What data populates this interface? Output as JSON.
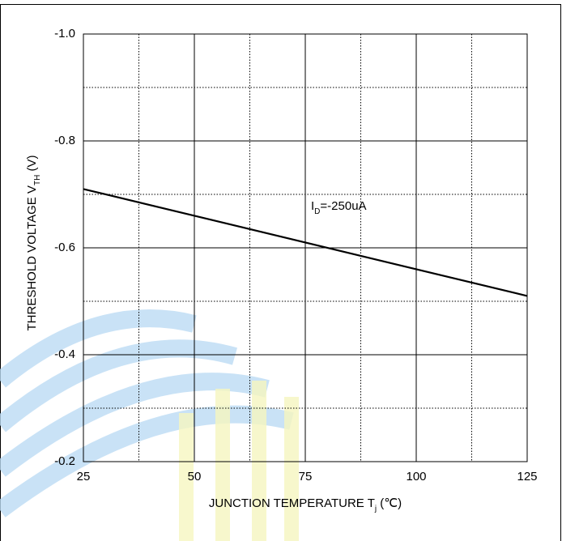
{
  "chart_data": {
    "type": "line",
    "y_label": [
      "THRESHOLD VOLTAGE V",
      "TH",
      " (V)"
    ],
    "x_label": [
      "JUNCTION TEMPERATURE T",
      "j",
      " (℃)"
    ],
    "annotation": [
      "I",
      "D",
      "=-250uA"
    ],
    "x": [
      25,
      125
    ],
    "series": [
      {
        "color": "#000000",
        "values": [
          -0.71,
          -0.51
        ]
      }
    ],
    "xlim": [
      25,
      125
    ],
    "xticks": [
      25,
      50,
      75,
      100,
      125
    ],
    "xminor": [
      37.5,
      62.5,
      87.5,
      112.5
    ],
    "ylim": [
      -0.2,
      -1.0
    ],
    "yticks": [
      {
        "value": -1.0,
        "label": "-1.0"
      },
      -0.8,
      -0.6,
      -0.4,
      -0.2
    ],
    "yminor": [
      -0.9,
      -0.7,
      -0.5,
      -0.3
    ],
    "grid": true
  }
}
